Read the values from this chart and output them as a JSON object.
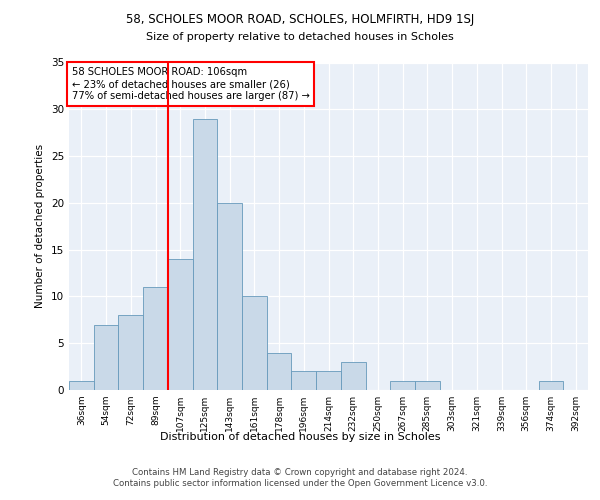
{
  "title1": "58, SCHOLES MOOR ROAD, SCHOLES, HOLMFIRTH, HD9 1SJ",
  "title2": "Size of property relative to detached houses in Scholes",
  "xlabel": "Distribution of detached houses by size in Scholes",
  "ylabel": "Number of detached properties",
  "bin_labels": [
    "36sqm",
    "54sqm",
    "72sqm",
    "89sqm",
    "107sqm",
    "125sqm",
    "143sqm",
    "161sqm",
    "178sqm",
    "196sqm",
    "214sqm",
    "232sqm",
    "250sqm",
    "267sqm",
    "285sqm",
    "303sqm",
    "321sqm",
    "339sqm",
    "356sqm",
    "374sqm",
    "392sqm"
  ],
  "bar_heights": [
    1,
    7,
    8,
    11,
    14,
    29,
    20,
    10,
    4,
    2,
    2,
    3,
    0,
    1,
    1,
    0,
    0,
    0,
    0,
    1,
    0
  ],
  "bar_color": "#c9d9e8",
  "bar_edge_color": "#6699bb",
  "vline_color": "red",
  "annotation_text": "58 SCHOLES MOOR ROAD: 106sqm\n← 23% of detached houses are smaller (26)\n77% of semi-detached houses are larger (87) →",
  "footer": "Contains HM Land Registry data © Crown copyright and database right 2024.\nContains public sector information licensed under the Open Government Licence v3.0.",
  "ylim": [
    0,
    35
  ],
  "yticks": [
    0,
    5,
    10,
    15,
    20,
    25,
    30,
    35
  ],
  "plot_bg_color": "#eaf0f8"
}
